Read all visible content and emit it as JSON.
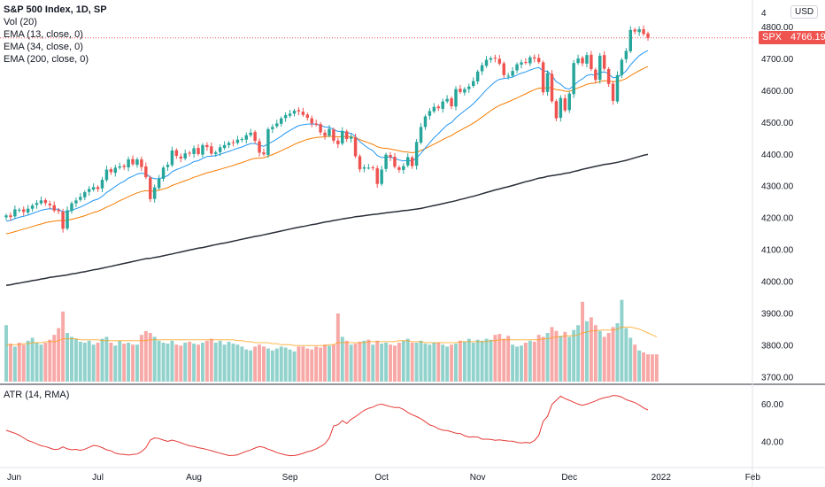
{
  "chart_data": {
    "type": "candlestick",
    "title": "S&P 500 Index, 1D, SP",
    "currency": "USD",
    "indicators": [
      "Vol (20)",
      "EMA (13, close, 0)",
      "EMA (34, close, 0)",
      "EMA (200, close, 0)"
    ],
    "atr_label": "ATR (14, RMA)",
    "symbol": "SPX",
    "last_price": "4766.19",
    "price_ticks": [
      "4800.00",
      "4700.00",
      "4600.00",
      "4500.00",
      "4400.00",
      "4300.00",
      "4200.00",
      "4100.00",
      "4000.00",
      "3900.00",
      "3800.00",
      "3700.00"
    ],
    "price_tick_top": "4",
    "atr_ticks": [
      "60.00",
      "40.00"
    ],
    "x_ticks": [
      "Jun",
      "Jul",
      "Aug",
      "Sep",
      "Oct",
      "Nov",
      "Dec",
      "2022",
      "Feb"
    ],
    "ylim": [
      3680,
      4885
    ],
    "atr_ylim": [
      27,
      70
    ],
    "closes": [
      4208,
      4203,
      4227,
      4226,
      4219,
      4229,
      4239,
      4247,
      4255,
      4247,
      4240,
      4223,
      4221,
      4166,
      4224,
      4246,
      4255,
      4266,
      4281,
      4291,
      4297,
      4291,
      4320,
      4352,
      4344,
      4358,
      4362,
      4360,
      4384,
      4369,
      4384,
      4360,
      4328,
      4259,
      4296,
      4323,
      4358,
      4367,
      4412,
      4395,
      4387,
      4403,
      4402,
      4419,
      4401,
      4429,
      4423,
      4402,
      4406,
      4422,
      4429,
      4436,
      4437,
      4446,
      4448,
      4460,
      4468,
      4442,
      4405,
      4400,
      4479,
      4486,
      4497,
      4513,
      4523,
      4528,
      4537,
      4535,
      4524,
      4515,
      4497,
      4493,
      4469,
      4458,
      4480,
      4443,
      4432,
      4473,
      4448,
      4455,
      4394,
      4353,
      4359,
      4358,
      4358,
      4307,
      4352,
      4399,
      4391,
      4361,
      4351,
      4363,
      4391,
      4363,
      4439,
      4486,
      4519,
      4536,
      4549,
      4545,
      4566,
      4574,
      4551,
      4605,
      4596,
      4605,
      4613,
      4630,
      4660,
      4680,
      4697,
      4702,
      4701,
      4685,
      4649,
      4647,
      4662,
      4683,
      4689,
      4688,
      4705,
      4701,
      4690,
      4595,
      4655,
      4567,
      4513,
      4577,
      4538,
      4591,
      4687,
      4701,
      4686,
      4712,
      4668,
      4634,
      4710,
      4669,
      4621,
      4568,
      4649,
      4697,
      4725,
      4791,
      4786,
      4793,
      4778,
      4766
    ],
    "ema13": [
      4190,
      4192,
      4198,
      4202,
      4205,
      4209,
      4214,
      4219,
      4224,
      4227,
      4229,
      4228,
      4227,
      4219,
      4220,
      4224,
      4229,
      4234,
      4241,
      4248,
      4255,
      4259,
      4268,
      4280,
      4289,
      4299,
      4308,
      4315,
      4325,
      4331,
      4338,
      4341,
      4339,
      4328,
      4323,
      4323,
      4328,
      4333,
      4345,
      4352,
      4357,
      4363,
      4369,
      4377,
      4380,
      4387,
      4393,
      4394,
      4396,
      4400,
      4405,
      4409,
      4414,
      4419,
      4423,
      4429,
      4434,
      4434,
      4429,
      4425,
      4433,
      4440,
      4448,
      4457,
      4467,
      4475,
      4483,
      4490,
      4493,
      4495,
      4495,
      4495,
      4491,
      4486,
      4485,
      4478,
      4472,
      4472,
      4468,
      4466,
      4456,
      4440,
      4429,
      4419,
      4411,
      4396,
      4390,
      4391,
      4391,
      4387,
      4382,
      4379,
      4381,
      4379,
      4388,
      4403,
      4420,
      4436,
      4452,
      4465,
      4479,
      4492,
      4500,
      4515,
      4526,
      4537,
      4547,
      4559,
      4573,
      4588,
      4603,
      4616,
      4628,
      4636,
      4638,
      4640,
      4643,
      4649,
      4655,
      4659,
      4665,
      4670,
      4673,
      4662,
      4661,
      4647,
      4628,
      4620,
      4608,
      4605,
      4616,
      4629,
      4637,
      4648,
      4651,
      4648,
      4657,
      4659,
      4653,
      4641,
      4642,
      4651,
      4662,
      4681,
      4696,
      4710,
      4719,
      4726
    ],
    "ema34": [
      4150,
      4153,
      4157,
      4161,
      4165,
      4169,
      4173,
      4177,
      4181,
      4185,
      4188,
      4190,
      4192,
      4191,
      4193,
      4196,
      4199,
      4203,
      4207,
      4212,
      4217,
      4221,
      4227,
      4234,
      4240,
      4247,
      4254,
      4260,
      4267,
      4273,
      4279,
      4283,
      4286,
      4284,
      4285,
      4287,
      4291,
      4295,
      4302,
      4307,
      4312,
      4317,
      4322,
      4328,
      4332,
      4337,
      4342,
      4345,
      4349,
      4353,
      4357,
      4361,
      4365,
      4370,
      4374,
      4379,
      4384,
      4387,
      4388,
      4389,
      4394,
      4399,
      4405,
      4411,
      4418,
      4424,
      4431,
      4437,
      4442,
      4447,
      4450,
      4453,
      4454,
      4455,
      4457,
      4456,
      4455,
      4456,
      4456,
      4456,
      4452,
      4446,
      4441,
      4436,
      4431,
      4424,
      4420,
      4419,
      4417,
      4414,
      4411,
      4408,
      4407,
      4405,
      4407,
      4412,
      4418,
      4425,
      4432,
      4439,
      4446,
      4453,
      4459,
      4468,
      4475,
      4483,
      4490,
      4498,
      4507,
      4517,
      4527,
      4537,
      4546,
      4554,
      4559,
      4565,
      4571,
      4577,
      4584,
      4590,
      4597,
      4603,
      4608,
      4607,
      4610,
      4608,
      4603,
      4602,
      4598,
      4598,
      4603,
      4609,
      4614,
      4620,
      4623,
      4624,
      4629,
      4631,
      4631,
      4628,
      4629,
      4633,
      4638,
      4647,
      4655,
      4663,
      4670,
      4676
    ],
    "ema200": [
      3988,
      3990,
      3993,
      3995,
      3998,
      4000,
      4003,
      4005,
      4008,
      4010,
      4013,
      4015,
      4017,
      4019,
      4021,
      4024,
      4026,
      4029,
      4031,
      4034,
      4037,
      4039,
      4042,
      4045,
      4048,
      4051,
      4054,
      4057,
      4060,
      4063,
      4066,
      4069,
      4072,
      4073,
      4076,
      4078,
      4081,
      4084,
      4087,
      4090,
      4093,
      4096,
      4099,
      4102,
      4105,
      4107,
      4110,
      4113,
      4116,
      4119,
      4121,
      4124,
      4127,
      4130,
      4133,
      4136,
      4139,
      4142,
      4144,
      4147,
      4150,
      4153,
      4156,
      4159,
      4162,
      4165,
      4168,
      4171,
      4173,
      4176,
      4179,
      4181,
      4184,
      4187,
      4189,
      4192,
      4194,
      4197,
      4199,
      4201,
      4204,
      4205,
      4207,
      4209,
      4211,
      4212,
      4214,
      4216,
      4218,
      4219,
      4221,
      4223,
      4224,
      4226,
      4228,
      4230,
      4233,
      4236,
      4239,
      4242,
      4245,
      4248,
      4251,
      4254,
      4258,
      4261,
      4265,
      4268,
      4272,
      4276,
      4280,
      4284,
      4288,
      4291,
      4295,
      4298,
      4302,
      4306,
      4310,
      4314,
      4317,
      4321,
      4325,
      4327,
      4331,
      4333,
      4335,
      4337,
      4340,
      4342,
      4346,
      4349,
      4353,
      4356,
      4359,
      4362,
      4365,
      4368,
      4370,
      4372,
      4375,
      4378,
      4381,
      4385,
      4389,
      4393,
      4397,
      4400
    ],
    "volumes_rel": [
      0.58,
      0.39,
      0.36,
      0.4,
      0.38,
      0.42,
      0.45,
      0.4,
      0.38,
      0.4,
      0.43,
      0.48,
      0.55,
      0.72,
      0.5,
      0.46,
      0.44,
      0.41,
      0.4,
      0.42,
      0.38,
      0.4,
      0.44,
      0.46,
      0.4,
      0.37,
      0.42,
      0.39,
      0.4,
      0.38,
      0.38,
      0.48,
      0.52,
      0.5,
      0.46,
      0.42,
      0.4,
      0.39,
      0.42,
      0.38,
      0.37,
      0.4,
      0.41,
      0.39,
      0.38,
      0.4,
      0.42,
      0.44,
      0.4,
      0.42,
      0.38,
      0.41,
      0.39,
      0.38,
      0.36,
      0.33,
      0.32,
      0.36,
      0.38,
      0.36,
      0.34,
      0.32,
      0.34,
      0.36,
      0.35,
      0.33,
      0.31,
      0.36,
      0.36,
      0.34,
      0.33,
      0.36,
      0.35,
      0.38,
      0.37,
      0.38,
      0.7,
      0.46,
      0.42,
      0.38,
      0.39,
      0.41,
      0.42,
      0.43,
      0.38,
      0.42,
      0.39,
      0.4,
      0.38,
      0.37,
      0.4,
      0.42,
      0.44,
      0.4,
      0.4,
      0.42,
      0.39,
      0.38,
      0.4,
      0.4,
      0.38,
      0.36,
      0.38,
      0.39,
      0.42,
      0.41,
      0.44,
      0.4,
      0.43,
      0.42,
      0.44,
      0.43,
      0.48,
      0.49,
      0.44,
      0.47,
      0.38,
      0.36,
      0.37,
      0.4,
      0.42,
      0.41,
      0.48,
      0.46,
      0.5,
      0.56,
      0.52,
      0.47,
      0.51,
      0.46,
      0.53,
      0.58,
      0.82,
      0.62,
      0.66,
      0.58,
      0.52,
      0.46,
      0.5,
      0.56,
      0.6,
      0.84,
      0.55,
      0.45,
      0.38,
      0.32,
      0.3,
      0.28,
      0.28,
      0.28
    ],
    "vol_ma_rel": [
      0.38,
      0.38,
      0.38,
      0.38,
      0.39,
      0.39,
      0.4,
      0.4,
      0.4,
      0.41,
      0.41,
      0.41,
      0.42,
      0.44,
      0.44,
      0.44,
      0.44,
      0.43,
      0.43,
      0.43,
      0.43,
      0.43,
      0.42,
      0.42,
      0.42,
      0.42,
      0.42,
      0.42,
      0.42,
      0.42,
      0.42,
      0.42,
      0.42,
      0.43,
      0.43,
      0.43,
      0.43,
      0.43,
      0.43,
      0.43,
      0.43,
      0.43,
      0.43,
      0.43,
      0.43,
      0.43,
      0.43,
      0.43,
      0.43,
      0.43,
      0.43,
      0.43,
      0.43,
      0.42,
      0.42,
      0.41,
      0.41,
      0.4,
      0.4,
      0.4,
      0.4,
      0.39,
      0.39,
      0.38,
      0.38,
      0.38,
      0.37,
      0.37,
      0.37,
      0.37,
      0.37,
      0.37,
      0.37,
      0.37,
      0.38,
      0.38,
      0.4,
      0.4,
      0.4,
      0.4,
      0.4,
      0.4,
      0.4,
      0.41,
      0.41,
      0.41,
      0.41,
      0.41,
      0.41,
      0.41,
      0.42,
      0.42,
      0.42,
      0.41,
      0.41,
      0.41,
      0.4,
      0.4,
      0.4,
      0.4,
      0.4,
      0.4,
      0.4,
      0.4,
      0.41,
      0.41,
      0.41,
      0.41,
      0.41,
      0.41,
      0.41,
      0.42,
      0.42,
      0.43,
      0.43,
      0.43,
      0.43,
      0.43,
      0.43,
      0.43,
      0.43,
      0.43,
      0.43,
      0.44,
      0.44,
      0.45,
      0.46,
      0.46,
      0.47,
      0.47,
      0.47,
      0.48,
      0.5,
      0.51,
      0.52,
      0.52,
      0.53,
      0.53,
      0.53,
      0.53,
      0.54,
      0.56,
      0.56,
      0.56,
      0.55,
      0.54,
      0.52,
      0.5,
      0.48,
      0.46
    ],
    "atr": [
      46.2,
      45.4,
      44.6,
      43.6,
      42.2,
      40.8,
      40.0,
      39.0,
      38.0,
      37.6,
      36.8,
      36.0,
      36.2,
      37.4,
      36.4,
      35.9,
      36.1,
      35.6,
      36.2,
      37.2,
      38.2,
      37.9,
      37.0,
      35.9,
      35.3,
      34.1,
      33.6,
      33.4,
      33.1,
      33.4,
      33.7,
      34.9,
      37.0,
      41.0,
      42.2,
      41.8,
      41.0,
      40.3,
      41.0,
      40.4,
      39.6,
      38.8,
      38.0,
      37.6,
      37.0,
      36.6,
      36.0,
      35.4,
      34.7,
      34.1,
      33.5,
      32.9,
      33.0,
      33.2,
      34.2,
      35.1,
      35.8,
      36.8,
      37.6,
      37.2,
      36.2,
      35.4,
      34.4,
      33.8,
      33.2,
      32.8,
      32.9,
      33.3,
      34.0,
      34.9,
      35.4,
      36.4,
      37.6,
      39.0,
      42.1,
      48.5,
      49.1,
      51.3,
      49.7,
      51.9,
      53.4,
      55.1,
      56.7,
      57.8,
      58.4,
      59.6,
      60.0,
      59.3,
      58.7,
      58.2,
      58.2,
      57.2,
      55.6,
      54.4,
      53.4,
      52.3,
      50.7,
      49.0,
      48.3,
      47.0,
      46.2,
      46.0,
      45.4,
      44.6,
      44.5,
      43.3,
      42.6,
      42.8,
      42.6,
      41.5,
      41.5,
      41.4,
      40.9,
      41.1,
      40.8,
      40.5,
      40.4,
      39.8,
      39.5,
      39.8,
      39.5,
      40.8,
      43.5,
      50.9,
      53.6,
      59.8,
      62.0,
      64.2,
      62.9,
      62.0,
      61.0,
      60.0,
      59.4,
      60.0,
      60.8,
      61.7,
      62.7,
      63.4,
      63.8,
      64.6,
      64.4,
      63.7,
      62.4,
      61.6,
      60.8,
      59.6,
      58.0,
      56.9
    ]
  }
}
